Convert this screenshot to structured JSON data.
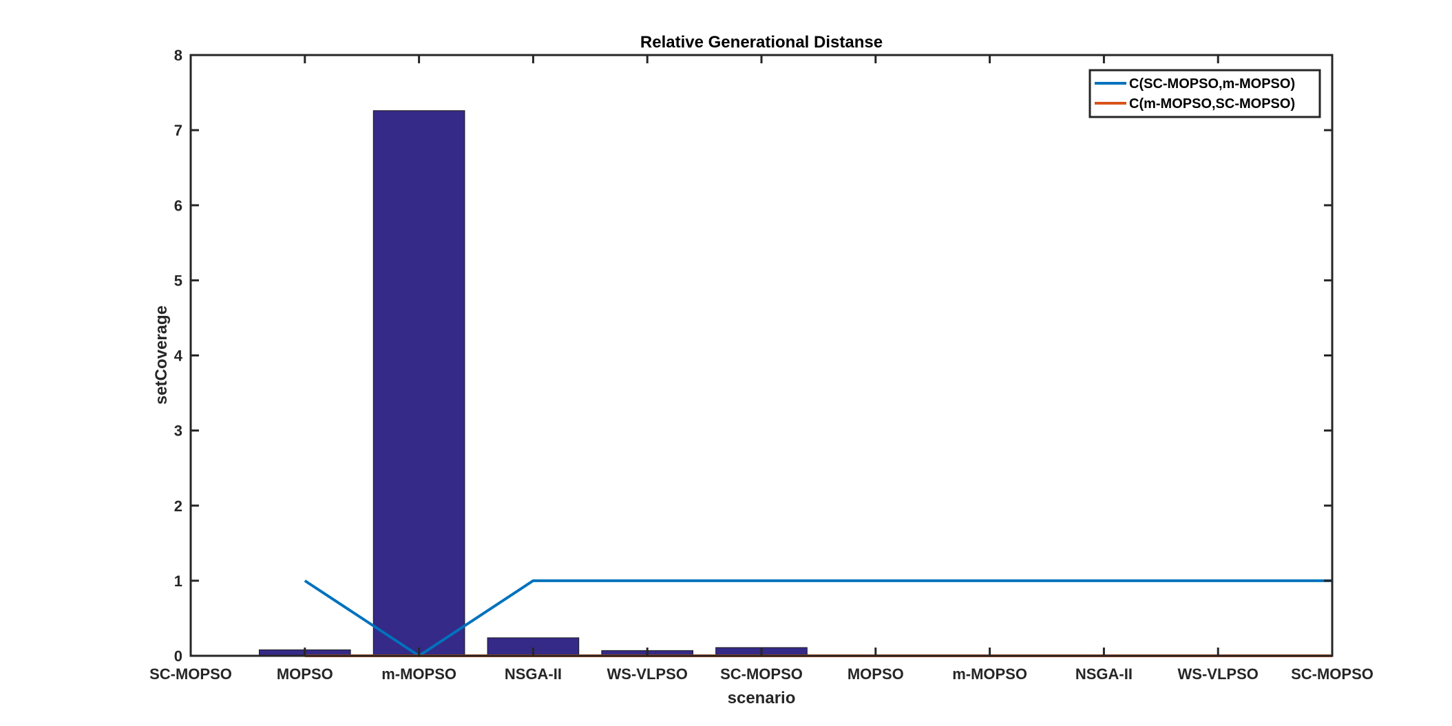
{
  "chart_data": {
    "type": "bar",
    "title": "Relative Generational Distanse",
    "xlabel": "scenario",
    "ylabel": "setCoverage",
    "categories": [
      "SC-MOPSO",
      "MOPSO",
      "m-MOPSO",
      "NSGA-II",
      "WS-VLPSO",
      "SC-MOPSO",
      "MOPSO",
      "m-MOPSO",
      "NSGA-II",
      "WS-VLPSO",
      "SC-MOPSO"
    ],
    "bars": [
      0,
      0.08,
      7.26,
      0.24,
      0.07,
      0.11
    ],
    "ylim": [
      0,
      8
    ],
    "yticks": [
      "0",
      "1",
      "2",
      "3",
      "4",
      "5",
      "6",
      "7",
      "8"
    ],
    "bar_color": "#352A87",
    "series": [
      {
        "name": "C(SC-MOPSO,m-MOPSO)",
        "color": "#0072BD",
        "x": [
          1,
          2,
          3,
          4,
          5,
          6,
          7,
          8,
          9,
          10
        ],
        "values": [
          1,
          0,
          1,
          1,
          1,
          1,
          1,
          1,
          1,
          1
        ]
      },
      {
        "name": "C(m-MOPSO,SC-MOPSO)",
        "color": "#D95319",
        "x": [
          1,
          2,
          3,
          4,
          5,
          6,
          7,
          8,
          9,
          10
        ],
        "values": [
          0,
          0,
          0,
          0,
          0,
          0,
          0,
          0,
          0,
          0
        ]
      }
    ],
    "legend_position": "top-right",
    "grid": false
  }
}
